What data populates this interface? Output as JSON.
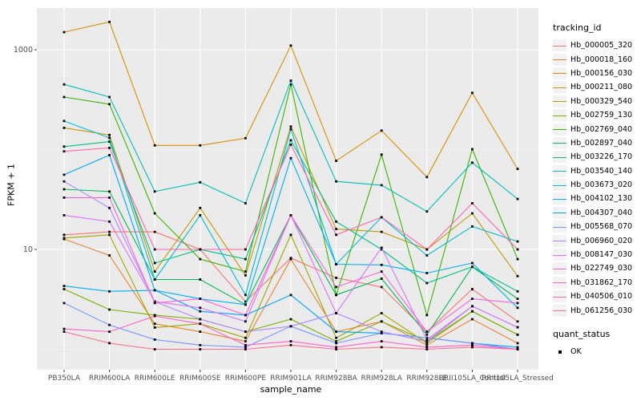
{
  "chart_data": {
    "type": "line",
    "title": "",
    "xlabel": "sample_name",
    "ylabel": "FPKM + 1",
    "scale": "log10",
    "ylim": [
      0.62,
      2600
    ],
    "grid": "on",
    "legend_position": "right",
    "legend_title": "tracking_id",
    "legend2_title": "quant_status",
    "legend2_items": [
      "OK"
    ],
    "y_ticks": [
      {
        "label": "1000",
        "value": 1000
      },
      {
        "label": "10",
        "value": 10
      }
    ],
    "major_grid_values": [
      10,
      1000
    ],
    "minor_grid_values": [
      1,
      100
    ],
    "categories": [
      "PB350LA",
      "RRIM600LA",
      "RRIM600LE",
      "RRIM600SE",
      "RRIM600PE",
      "RRIM901LA",
      "RRIM928BA",
      "RRIM928LA",
      "RRIM928LE",
      "RRII105LA_Control",
      "RRII105LA_Stressed"
    ],
    "series": [
      {
        "name": "Hb_000005_320",
        "color": "#F8766D",
        "values": [
          14,
          15,
          15,
          10,
          3.0,
          8.2,
          5.2,
          4.2,
          1.5,
          4.0,
          1.9
        ]
      },
      {
        "name": "Hb_000018_160",
        "color": "#EA8331",
        "values": [
          12.7,
          8.7,
          1.8,
          1.5,
          1.2,
          8.0,
          1.5,
          1.9,
          1.1,
          2.0,
          1.15
        ]
      },
      {
        "name": "Hb_000156_030",
        "color": "#D89000",
        "values": [
          1500,
          1900,
          110,
          110,
          130,
          1100,
          77,
          155,
          53,
          370,
          64
        ]
      },
      {
        "name": "Hb_000211_080",
        "color": "#C09B00",
        "values": [
          165,
          140,
          6,
          26,
          5.5,
          170,
          16,
          15,
          10,
          23,
          5.4
        ]
      },
      {
        "name": "Hb_000329_540",
        "color": "#A3A500",
        "values": [
          13,
          14,
          1.65,
          1.8,
          1.3,
          14,
          1.3,
          2.3,
          1.15,
          2.4,
          1.4
        ]
      },
      {
        "name": "Hb_002759_130",
        "color": "#7CAE00",
        "values": [
          4.0,
          2.5,
          2.2,
          2.0,
          1.5,
          2.0,
          1.2,
          1.9,
          1.2,
          2.4,
          1.4
        ]
      },
      {
        "name": "Hb_002769_040",
        "color": "#39B600",
        "values": [
          336,
          285,
          23,
          8,
          6,
          450,
          3.5,
          89,
          2.2,
          101,
          8
        ]
      },
      {
        "name": "Hb_002897_040",
        "color": "#00BB4E",
        "values": [
          40,
          38,
          5.0,
          5.0,
          2.8,
          22,
          3.5,
          5.1,
          1.4,
          6.7,
          3.2
        ]
      },
      {
        "name": "Hb_003226_170",
        "color": "#00C087",
        "values": [
          107,
          120,
          7.3,
          10,
          8,
          124,
          19,
          10,
          4.6,
          6.7,
          3.8
        ]
      },
      {
        "name": "Hb_003540_140",
        "color": "#00C0B8",
        "values": [
          450,
          336,
          38,
          47,
          29,
          490,
          48,
          44,
          24,
          74,
          32
        ]
      },
      {
        "name": "Hb_003673_020",
        "color": "#00BCD8",
        "values": [
          193,
          131,
          5.0,
          22,
          3.5,
          160,
          7.1,
          21,
          8.7,
          17,
          12
        ]
      },
      {
        "name": "Hb_004102_130",
        "color": "#00B0F6",
        "values": [
          4.3,
          3.8,
          3.9,
          3.2,
          2.8,
          82,
          7.1,
          7.0,
          5.8,
          7.3,
          2.6
        ]
      },
      {
        "name": "Hb_004307_040",
        "color": "#00A5FF",
        "values": [
          56,
          88,
          3.9,
          2.4,
          2.2,
          3.5,
          1.5,
          1.45,
          1.3,
          1.15,
          1.05
        ]
      },
      {
        "name": "Hb_005568_070",
        "color": "#7997FF",
        "values": [
          2.9,
          1.75,
          1.25,
          1.1,
          1.05,
          1.7,
          1.15,
          1.45,
          1.3,
          1.15,
          1.0
        ]
      },
      {
        "name": "Hb_006960_020",
        "color": "#AC88FF",
        "values": [
          48,
          26,
          3.0,
          2.0,
          1.5,
          1.7,
          2.3,
          1.5,
          1.2,
          2.7,
          1.66
        ]
      },
      {
        "name": "Hb_008147_030",
        "color": "#DC71FA",
        "values": [
          22,
          19,
          3.0,
          2.6,
          1.9,
          22,
          2.3,
          10.4,
          1.25,
          2.7,
          1.66
        ]
      },
      {
        "name": "Hb_022749_030",
        "color": "#F763E0",
        "values": [
          33,
          33,
          2.9,
          3.2,
          2.2,
          22,
          4.2,
          6.0,
          1.5,
          3.2,
          2.9
        ]
      },
      {
        "name": "Hb_031862_170",
        "color": "#FF61CC",
        "values": [
          1.6,
          1.5,
          2.15,
          1.8,
          1.1,
          1.2,
          1.05,
          1.2,
          1.05,
          1.1,
          1.0
        ]
      },
      {
        "name": "Hb_040506_010",
        "color": "#FF65AE",
        "values": [
          96,
          104,
          10,
          10,
          10,
          112,
          14,
          21,
          10,
          29,
          10
        ]
      },
      {
        "name": "Hb_061256_030",
        "color": "#FF6C91",
        "values": [
          1.5,
          1.15,
          1.0,
          1.0,
          1.0,
          1.1,
          1.0,
          1.05,
          1.0,
          1.05,
          1.0
        ]
      }
    ]
  },
  "colors": {
    "panel_bg": "#EBEBEB",
    "grid_major": "#FFFFFF",
    "grid_minor": "#F7F7F7",
    "tick_label": "#4D4D4D",
    "tick_mark": "#333333",
    "point": "#000000",
    "legend_key_bg": "#F2F2F2"
  }
}
